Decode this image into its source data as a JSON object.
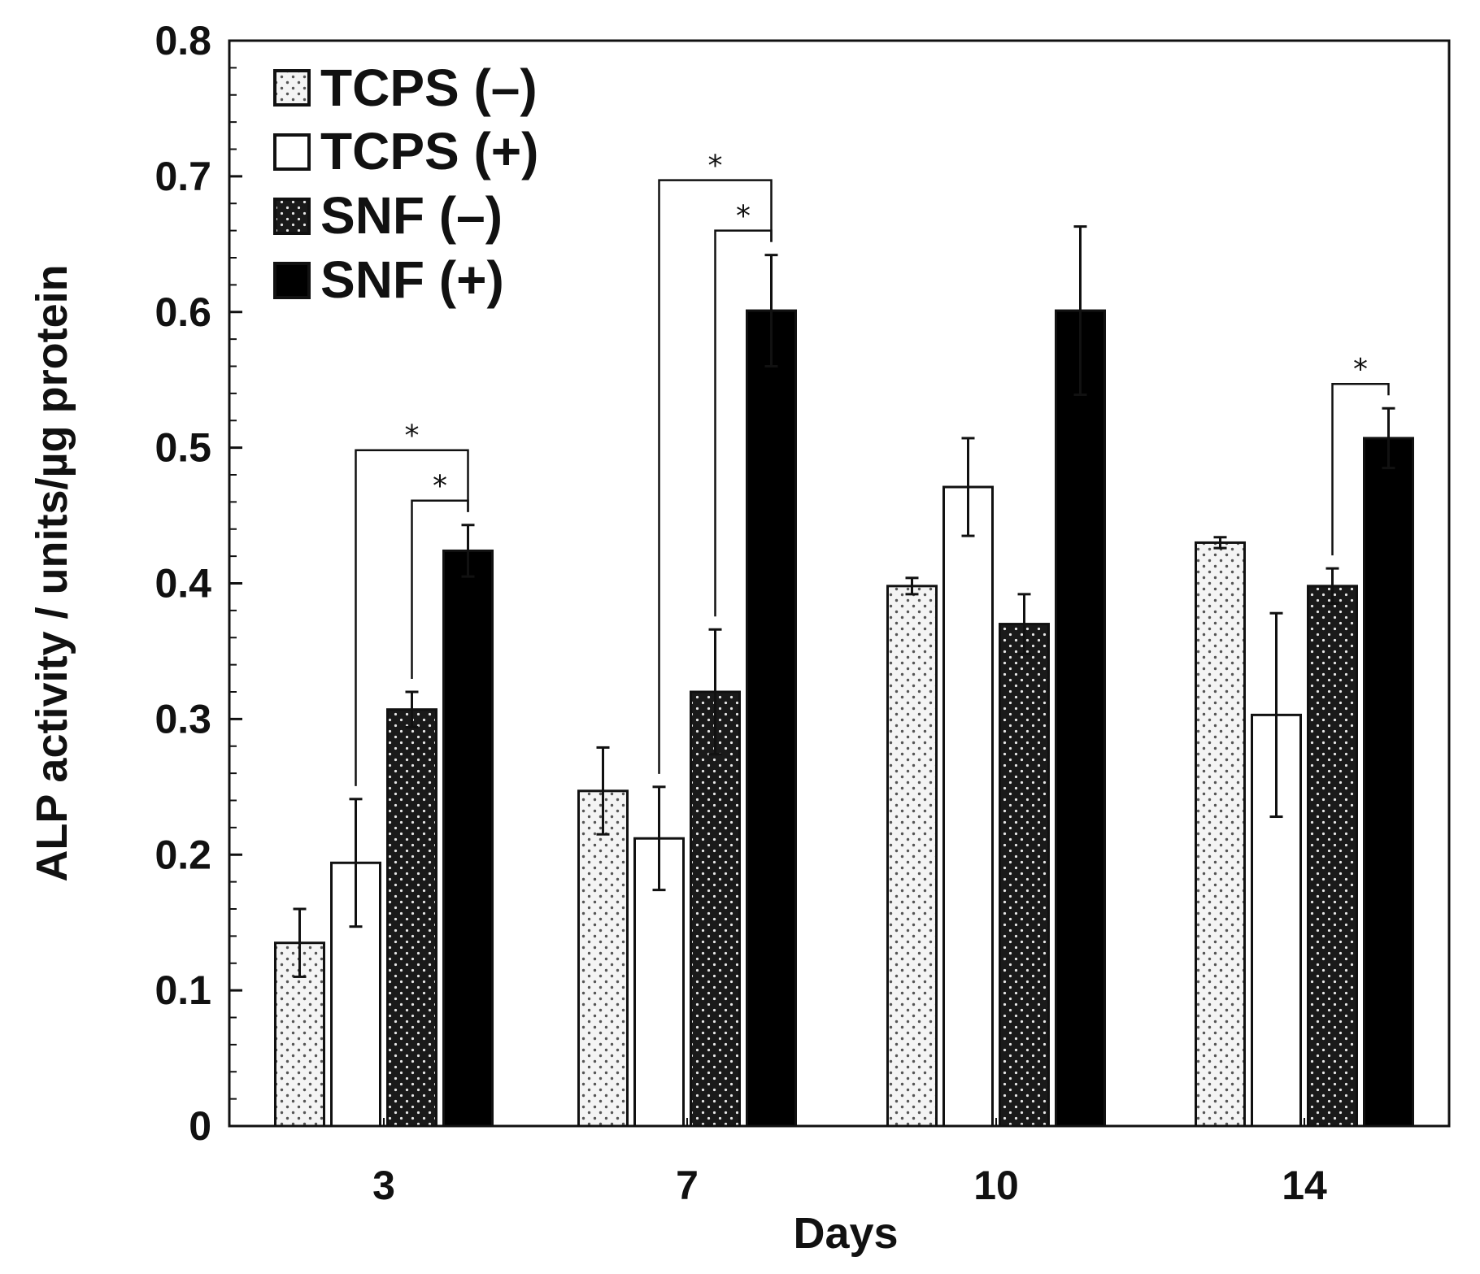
{
  "chart_data": {
    "type": "bar",
    "title": "",
    "xlabel": "Days",
    "ylabel": "ALP activity / units/µg protein",
    "ylim": [
      0,
      0.8
    ],
    "yticks": [
      "0",
      "0.1",
      "0.2",
      "0.3",
      "0.4",
      "0.5",
      "0.6",
      "0.7",
      "0.8"
    ],
    "categories": [
      "3",
      "7",
      "10",
      "14"
    ],
    "legend_position": "top-left",
    "series": [
      {
        "name": "TCPS (–)",
        "legend_label": "TCPS (–)",
        "style": "light-dotted",
        "values": [
          0.135,
          0.247,
          0.398,
          0.43
        ],
        "errors": [
          0.025,
          0.032,
          0.006,
          0.004
        ]
      },
      {
        "name": "TCPS (+)",
        "legend_label": "TCPS (+)",
        "style": "white",
        "values": [
          0.194,
          0.212,
          0.471,
          0.303
        ],
        "errors": [
          0.047,
          0.038,
          0.036,
          0.075
        ]
      },
      {
        "name": "SNF (–)",
        "legend_label": "SNF (–)",
        "style": "dark-dotted",
        "values": [
          0.307,
          0.32,
          0.37,
          0.398
        ],
        "errors": [
          0.013,
          0.046,
          0.022,
          0.013
        ]
      },
      {
        "name": "SNF (+)",
        "legend_label": "SNF (+)",
        "style": "black",
        "values": [
          0.424,
          0.601,
          0.601,
          0.507
        ],
        "errors": [
          0.019,
          0.041,
          0.062,
          0.022
        ]
      }
    ],
    "significance": [
      {
        "category": 0,
        "from_series": 1,
        "to_series": 3,
        "label": "*"
      },
      {
        "category": 0,
        "from_series": 2,
        "to_series": 3,
        "label": "*"
      },
      {
        "category": 1,
        "from_series": 1,
        "to_series": 3,
        "label": "*"
      },
      {
        "category": 1,
        "from_series": 2,
        "to_series": 3,
        "label": "*"
      },
      {
        "category": 3,
        "from_series": 2,
        "to_series": 3,
        "label": "*"
      }
    ]
  }
}
